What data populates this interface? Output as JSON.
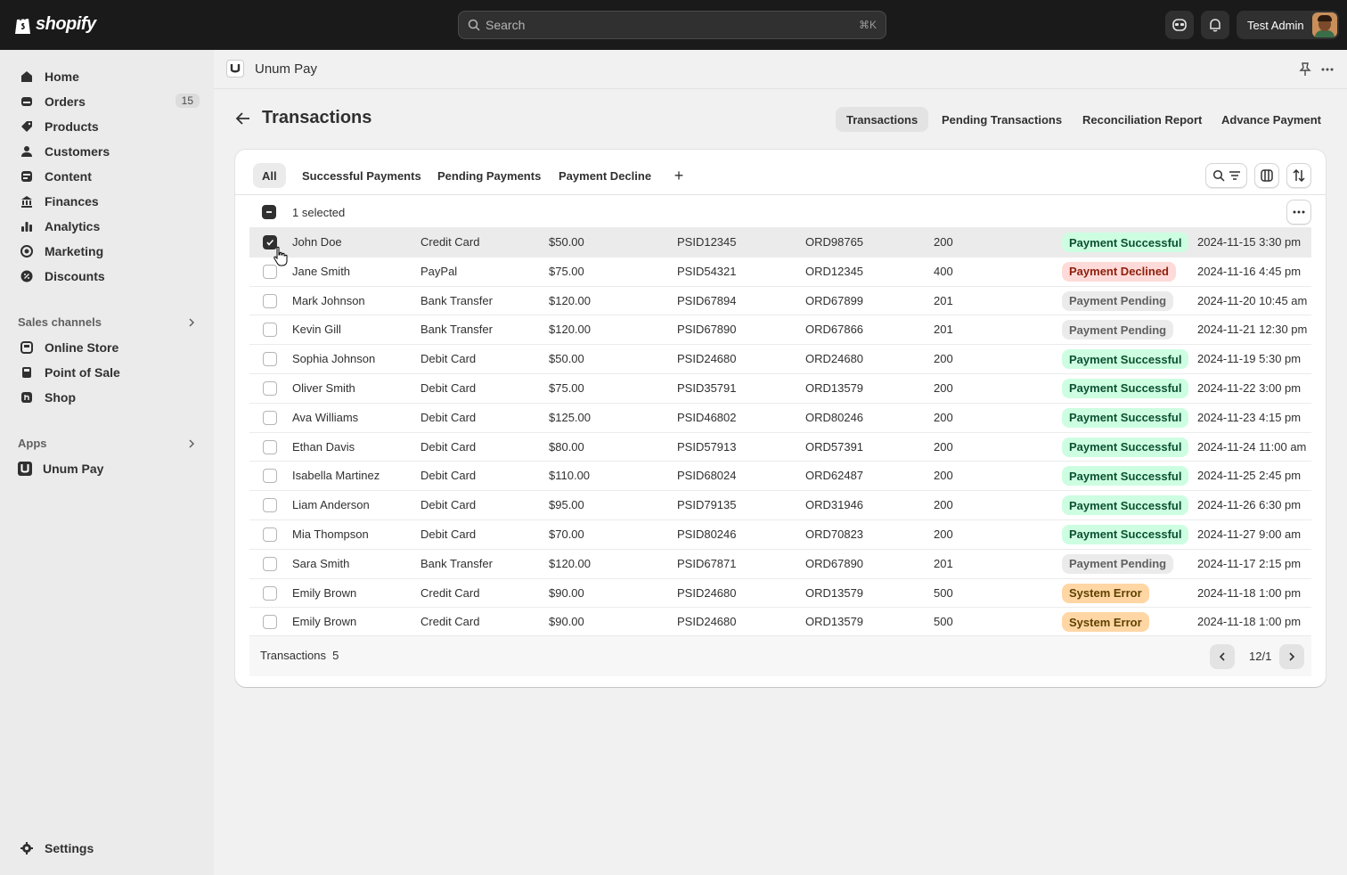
{
  "topbar": {
    "brand": "shopify",
    "search_placeholder": "Search",
    "search_shortcut": "⌘K",
    "user_name": "Test Admin"
  },
  "sidebar": {
    "items": [
      {
        "label": "Home",
        "icon": "home-icon"
      },
      {
        "label": "Orders",
        "icon": "orders-icon",
        "badge": "15"
      },
      {
        "label": "Products",
        "icon": "tag-icon"
      },
      {
        "label": "Customers",
        "icon": "person-icon"
      },
      {
        "label": "Content",
        "icon": "content-icon"
      },
      {
        "label": "Finances",
        "icon": "bank-icon"
      },
      {
        "label": "Analytics",
        "icon": "bar-chart-icon"
      },
      {
        "label": "Marketing",
        "icon": "target-icon"
      },
      {
        "label": "Discounts",
        "icon": "discount-icon"
      }
    ],
    "sales_channels_label": "Sales channels",
    "sales_channels": [
      {
        "label": "Online Store",
        "icon": "store-icon"
      },
      {
        "label": "Point of Sale",
        "icon": "pos-icon"
      },
      {
        "label": "Shop",
        "icon": "shop-icon"
      }
    ],
    "apps_label": "Apps",
    "apps": [
      {
        "label": "Unum Pay",
        "icon": "unum-pay-icon"
      }
    ],
    "settings_label": "Settings"
  },
  "app_header": {
    "app_name": "Unum Pay"
  },
  "page": {
    "title": "Transactions",
    "header_tabs": [
      "Transactions",
      "Pending Transactions",
      "Reconciliation Report",
      "Advance Payment"
    ],
    "active_header_tab": "Transactions"
  },
  "table": {
    "filter_tabs": [
      "All",
      "Successful Payments",
      "Pending Payments",
      "Payment Decline"
    ],
    "active_filter_tab": "All",
    "add_tab_label": "+",
    "selection_label": "1 selected",
    "rows": [
      {
        "name": "John Doe",
        "method": "Credit Card",
        "amount": "$50.00",
        "psid": "PSID12345",
        "order": "ORD98765",
        "code": "200",
        "status": "Payment Successful",
        "date": "2024-11-15 3:30 pm",
        "selected": true
      },
      {
        "name": "Jane Smith",
        "method": "PayPal",
        "amount": "$75.00",
        "psid": "PSID54321",
        "order": "ORD12345",
        "code": "400",
        "status": "Payment Declined",
        "date": "2024-11-16 4:45 pm",
        "selected": false
      },
      {
        "name": "Mark Johnson",
        "method": "Bank Transfer",
        "amount": "$120.00",
        "psid": "PSID67894",
        "order": "ORD67899",
        "code": "201",
        "status": "Payment Pending",
        "date": "2024-11-20 10:45 am",
        "selected": false
      },
      {
        "name": "Kevin Gill",
        "method": "Bank Transfer",
        "amount": "$120.00",
        "psid": "PSID67890",
        "order": "ORD67866",
        "code": "201",
        "status": "Payment Pending",
        "date": "2024-11-21 12:30 pm",
        "selected": false
      },
      {
        "name": "Sophia Johnson",
        "method": "Debit Card",
        "amount": "$50.00",
        "psid": "PSID24680",
        "order": "ORD24680",
        "code": "200",
        "status": "Payment Successful",
        "date": "2024-11-19 5:30 pm",
        "selected": false
      },
      {
        "name": "Oliver Smith",
        "method": "Debit Card",
        "amount": "$75.00",
        "psid": "PSID35791",
        "order": "ORD13579",
        "code": "200",
        "status": "Payment Successful",
        "date": "2024-11-22 3:00 pm",
        "selected": false
      },
      {
        "name": "Ava Williams",
        "method": "Debit Card",
        "amount": "$125.00",
        "psid": "PSID46802",
        "order": "ORD80246",
        "code": "200",
        "status": "Payment Successful",
        "date": "2024-11-23 4:15 pm",
        "selected": false
      },
      {
        "name": "Ethan Davis",
        "method": "Debit Card",
        "amount": "$80.00",
        "psid": "PSID57913",
        "order": "ORD57391",
        "code": "200",
        "status": "Payment Successful",
        "date": "2024-11-24 11:00 am",
        "selected": false
      },
      {
        "name": "Isabella Martinez",
        "method": "Debit Card",
        "amount": "$110.00",
        "psid": "PSID68024",
        "order": "ORD62487",
        "code": "200",
        "status": "Payment Successful",
        "date": "2024-11-25 2:45 pm",
        "selected": false
      },
      {
        "name": "Liam Anderson",
        "method": "Debit Card",
        "amount": "$95.00",
        "psid": "PSID79135",
        "order": "ORD31946",
        "code": "200",
        "status": "Payment Successful",
        "date": "2024-11-26 6:30 pm",
        "selected": false
      },
      {
        "name": "Mia Thompson",
        "method": "Debit Card",
        "amount": "$70.00",
        "psid": "PSID80246",
        "order": "ORD70823",
        "code": "200",
        "status": "Payment Successful",
        "date": "2024-11-27 9:00 am",
        "selected": false
      },
      {
        "name": "Sara Smith",
        "method": "Bank Transfer",
        "amount": "$120.00",
        "psid": "PSID67871",
        "order": "ORD67890",
        "code": "201",
        "status": "Payment Pending",
        "date": "2024-11-17 2:15 pm",
        "selected": false
      },
      {
        "name": "Emily Brown",
        "method": "Credit Card",
        "amount": "$90.00",
        "psid": "PSID24680",
        "order": "ORD13579",
        "code": "500",
        "status": "System Error",
        "date": "2024-11-18 1:00 pm",
        "selected": false
      },
      {
        "name": "Emily Brown",
        "method": "Credit Card",
        "amount": "$90.00",
        "psid": "PSID24680",
        "order": "ORD13579",
        "code": "500",
        "status": "System Error",
        "date": "2024-11-18 1:00 pm",
        "selected": false
      }
    ],
    "status_colors": {
      "Payment Successful": {
        "bg": "#cdfee1",
        "fg": "#0c5132"
      },
      "Payment Declined": {
        "bg": "#fedad9",
        "fg": "#8e1f0b"
      },
      "Payment Pending": {
        "bg": "#ebebeb",
        "fg": "#616161"
      },
      "System Error": {
        "bg": "#ffd6a4",
        "fg": "#5e4200"
      }
    },
    "footer_label": "Transactions",
    "footer_count": "5",
    "pagination_label": "12/1"
  }
}
